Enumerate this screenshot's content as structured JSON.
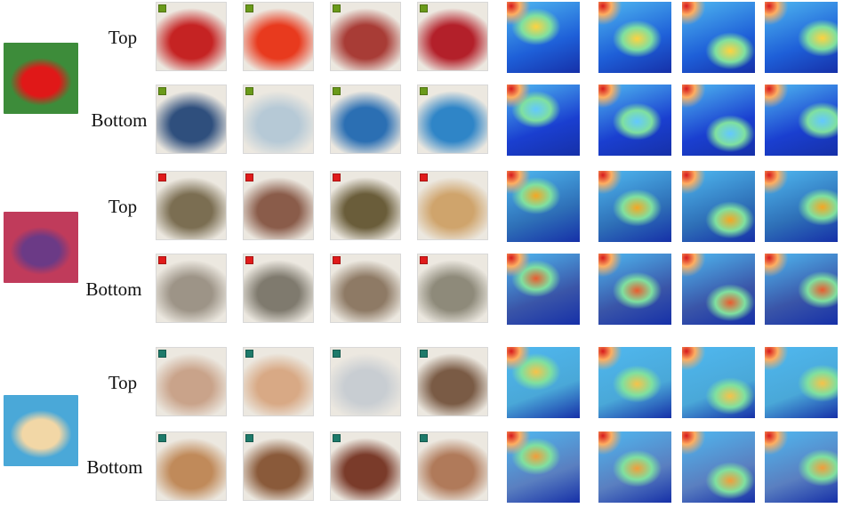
{
  "groups": [
    {
      "id": "car",
      "query": {
        "bg": "#3d8c3a",
        "fg": "#e01818"
      },
      "marker": "#6a9a1a",
      "rows": [
        {
          "label": "Top",
          "photos": [
            "#c52323",
            "#e83a1e",
            "#a83c36",
            "#b3202a"
          ],
          "heat_base": "#1e5fd8",
          "heat_hot": "#ffd23f"
        },
        {
          "label": "Bottom",
          "photos": [
            "#2f4f7d",
            "#b6c9d6",
            "#2b6fb3",
            "#2f85c7"
          ],
          "heat_base": "#1a3fd0",
          "heat_hot": "#63c8ff"
        }
      ]
    },
    {
      "id": "elephant",
      "query": {
        "bg": "#c03b5b",
        "fg": "#6b3a86"
      },
      "marker": "#e01b1b",
      "rows": [
        {
          "label": "Top",
          "photos": [
            "#7b6e52",
            "#8a5c4a",
            "#6a5d3a",
            "#cfa46c"
          ],
          "heat_base": "#2e6fb7",
          "heat_hot": "#f5a623"
        },
        {
          "label": "Bottom",
          "photos": [
            "#9d9487",
            "#7f7a6e",
            "#8e7a65",
            "#8e8a7a"
          ],
          "heat_base": "#3a55a8",
          "heat_hot": "#e95b2f"
        }
      ]
    },
    {
      "id": "face",
      "query": {
        "bg": "#4aa8d8",
        "fg": "#f2d7a6"
      },
      "marker": "#1e7a6a",
      "rows": [
        {
          "label": "Top",
          "photos": [
            "#c9a38a",
            "#d8a985",
            "#c8cdd2",
            "#7a5b45"
          ],
          "heat_base": "#4aa8d8",
          "heat_hot": "#f6c24a"
        },
        {
          "label": "Bottom",
          "photos": [
            "#c08a5a",
            "#8a5a3a",
            "#7a3b2a",
            "#b07a5a"
          ],
          "heat_base": "#5a7fc0",
          "heat_hot": "#f29d3a"
        }
      ]
    }
  ]
}
